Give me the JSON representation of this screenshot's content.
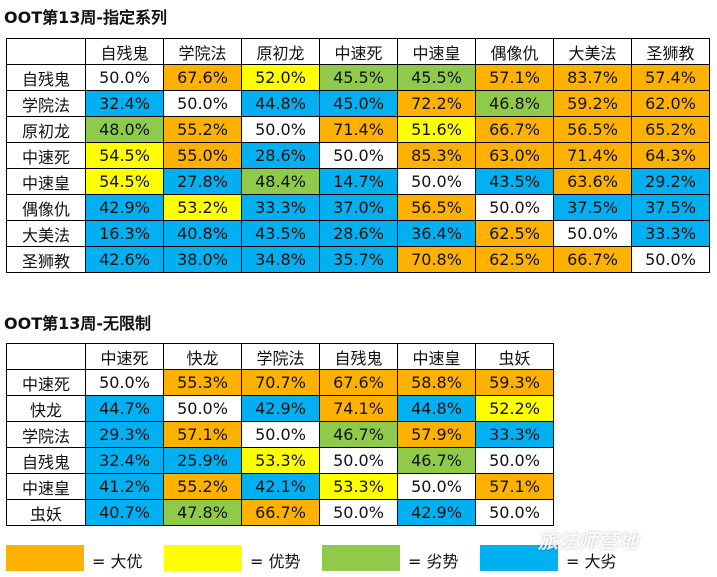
{
  "colors": {
    "big_advantage": "#FFB100",
    "advantage": "#FFFF00",
    "disadvantage": "#8FCA4A",
    "big_disadvantage": "#00B0F0",
    "neutral": "#FFFFFF"
  },
  "chart_data": [
    {
      "type": "table",
      "title": "OOT第13周-指定系列",
      "columns": [
        "自残鬼",
        "学院法",
        "原初龙",
        "中速死",
        "中速皇",
        "偶像仇",
        "大美法",
        "圣狮教"
      ],
      "rows": [
        {
          "label": "自残鬼",
          "values": [
            "50.0%",
            "67.6%",
            "52.0%",
            "45.5%",
            "45.5%",
            "57.1%",
            "83.7%",
            "57.4%"
          ],
          "classes": [
            "neutral",
            "big_advantage",
            "advantage",
            "disadvantage",
            "disadvantage",
            "big_advantage",
            "big_advantage",
            "big_advantage"
          ]
        },
        {
          "label": "学院法",
          "values": [
            "32.4%",
            "50.0%",
            "44.8%",
            "45.0%",
            "72.2%",
            "46.8%",
            "59.2%",
            "62.0%"
          ],
          "classes": [
            "big_disadvantage",
            "neutral",
            "big_disadvantage",
            "big_disadvantage",
            "big_advantage",
            "disadvantage",
            "big_advantage",
            "big_advantage"
          ]
        },
        {
          "label": "原初龙",
          "values": [
            "48.0%",
            "55.2%",
            "50.0%",
            "71.4%",
            "51.6%",
            "66.7%",
            "56.5%",
            "65.2%"
          ],
          "classes": [
            "disadvantage",
            "big_advantage",
            "neutral",
            "big_advantage",
            "advantage",
            "big_advantage",
            "big_advantage",
            "big_advantage"
          ]
        },
        {
          "label": "中速死",
          "values": [
            "54.5%",
            "55.0%",
            "28.6%",
            "50.0%",
            "85.3%",
            "63.0%",
            "71.4%",
            "64.3%"
          ],
          "classes": [
            "advantage",
            "big_advantage",
            "big_disadvantage",
            "neutral",
            "big_advantage",
            "big_advantage",
            "big_advantage",
            "big_advantage"
          ]
        },
        {
          "label": "中速皇",
          "values": [
            "54.5%",
            "27.8%",
            "48.4%",
            "14.7%",
            "50.0%",
            "43.5%",
            "63.6%",
            "29.2%"
          ],
          "classes": [
            "advantage",
            "big_disadvantage",
            "disadvantage",
            "big_disadvantage",
            "neutral",
            "big_disadvantage",
            "big_advantage",
            "big_disadvantage"
          ]
        },
        {
          "label": "偶像仇",
          "values": [
            "42.9%",
            "53.2%",
            "33.3%",
            "37.0%",
            "56.5%",
            "50.0%",
            "37.5%",
            "37.5%"
          ],
          "classes": [
            "big_disadvantage",
            "advantage",
            "big_disadvantage",
            "big_disadvantage",
            "big_advantage",
            "neutral",
            "big_disadvantage",
            "big_disadvantage"
          ]
        },
        {
          "label": "大美法",
          "values": [
            "16.3%",
            "40.8%",
            "43.5%",
            "28.6%",
            "36.4%",
            "62.5%",
            "50.0%",
            "33.3%"
          ],
          "classes": [
            "big_disadvantage",
            "big_disadvantage",
            "big_disadvantage",
            "big_disadvantage",
            "big_disadvantage",
            "big_advantage",
            "neutral",
            "big_disadvantage"
          ]
        },
        {
          "label": "圣狮教",
          "values": [
            "42.6%",
            "38.0%",
            "34.8%",
            "35.7%",
            "70.8%",
            "62.5%",
            "66.7%",
            "50.0%"
          ],
          "classes": [
            "big_disadvantage",
            "big_disadvantage",
            "big_disadvantage",
            "big_disadvantage",
            "big_advantage",
            "big_advantage",
            "big_advantage",
            "neutral"
          ]
        }
      ]
    },
    {
      "type": "table",
      "title": "OOT第13周-无限制",
      "columns": [
        "中速死",
        "快龙",
        "学院法",
        "自残鬼",
        "中速皇",
        "虫妖"
      ],
      "rows": [
        {
          "label": "中速死",
          "values": [
            "50.0%",
            "55.3%",
            "70.7%",
            "67.6%",
            "58.8%",
            "59.3%"
          ],
          "classes": [
            "neutral",
            "big_advantage",
            "big_advantage",
            "big_advantage",
            "big_advantage",
            "big_advantage"
          ]
        },
        {
          "label": "快龙",
          "values": [
            "44.7%",
            "50.0%",
            "42.9%",
            "74.1%",
            "44.8%",
            "52.2%"
          ],
          "classes": [
            "big_disadvantage",
            "neutral",
            "big_disadvantage",
            "big_advantage",
            "big_disadvantage",
            "advantage"
          ]
        },
        {
          "label": "学院法",
          "values": [
            "29.3%",
            "57.1%",
            "50.0%",
            "46.7%",
            "57.9%",
            "33.3%"
          ],
          "classes": [
            "big_disadvantage",
            "big_advantage",
            "neutral",
            "disadvantage",
            "big_advantage",
            "big_disadvantage"
          ]
        },
        {
          "label": "自残鬼",
          "values": [
            "32.4%",
            "25.9%",
            "53.3%",
            "50.0%",
            "46.7%",
            "50.0%"
          ],
          "classes": [
            "big_disadvantage",
            "big_disadvantage",
            "advantage",
            "neutral",
            "disadvantage",
            "neutral"
          ]
        },
        {
          "label": "中速皇",
          "values": [
            "41.2%",
            "55.2%",
            "42.1%",
            "53.3%",
            "50.0%",
            "57.1%"
          ],
          "classes": [
            "big_disadvantage",
            "big_advantage",
            "big_disadvantage",
            "advantage",
            "neutral",
            "big_advantage"
          ]
        },
        {
          "label": "虫妖",
          "values": [
            "40.7%",
            "47.8%",
            "66.7%",
            "50.0%",
            "42.9%",
            "50.0%"
          ],
          "classes": [
            "big_disadvantage",
            "disadvantage",
            "big_advantage",
            "neutral",
            "big_disadvantage",
            "neutral"
          ]
        }
      ]
    }
  ],
  "legend": [
    {
      "key": "big_advantage",
      "label": "= 大优"
    },
    {
      "key": "advantage",
      "label": "= 优势"
    },
    {
      "key": "disadvantage",
      "label": "= 劣势"
    },
    {
      "key": "big_disadvantage",
      "label": "= 大劣"
    }
  ],
  "watermark": "旅法师营地"
}
